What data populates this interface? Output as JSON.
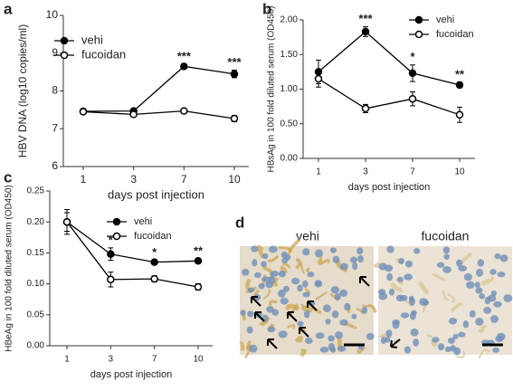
{
  "chart_data": [
    {
      "type": "line",
      "panel": "a",
      "ylabel": "HBV DNA (log10 copies/ml)",
      "xlabel": "days post injection",
      "categories": [
        "1",
        "3",
        "7",
        "10"
      ],
      "ylim": [
        6,
        10
      ],
      "yticks": [
        6,
        7,
        8,
        9,
        10
      ],
      "legend": "upper left",
      "series": [
        {
          "name": "vehi",
          "color": "#000000",
          "marker": "filled",
          "values": [
            7.46,
            7.47,
            8.65,
            8.45
          ],
          "errors": [
            0.04,
            0.04,
            0.06,
            0.1
          ]
        },
        {
          "name": "fucoidan",
          "color": "#000000",
          "marker": "open",
          "values": [
            7.45,
            7.38,
            7.47,
            7.27
          ],
          "errors": [
            0.04,
            0.04,
            0.04,
            0.08
          ]
        }
      ],
      "annotations": [
        {
          "x": "7",
          "text": "***"
        },
        {
          "x": "10",
          "text": "***"
        }
      ]
    },
    {
      "type": "line",
      "panel": "b",
      "ylabel": "HBsAg in 100 fold diluted serum (OD450)",
      "xlabel": "days post injection",
      "categories": [
        "1",
        "3",
        "7",
        "10"
      ],
      "ylim": [
        0,
        2
      ],
      "yticks": [
        {
          "value": 0,
          "label": "0.00"
        },
        {
          "value": 0.5,
          "label": "0.50"
        },
        {
          "value": 1,
          "label": "1.00"
        },
        {
          "value": 1.5,
          "label": "1.50"
        },
        {
          "value": 2,
          "label": "2.00"
        }
      ],
      "legend": "upper right",
      "series": [
        {
          "name": "vehi",
          "color": "#000000",
          "marker": "filled",
          "values": [
            1.25,
            1.83,
            1.23,
            1.06
          ],
          "errors": [
            0.17,
            0.07,
            0.12,
            0.04
          ]
        },
        {
          "name": "fucoidan",
          "color": "#000000",
          "marker": "open",
          "values": [
            1.15,
            0.72,
            0.86,
            0.63
          ],
          "errors": [
            0.12,
            0.06,
            0.1,
            0.11
          ]
        }
      ],
      "annotations": [
        {
          "x": "3",
          "text": "***"
        },
        {
          "x": "7",
          "text": "*"
        },
        {
          "x": "10",
          "text": "**"
        }
      ]
    },
    {
      "type": "line",
      "panel": "c",
      "ylabel": "HBeAg in 100 fold diluted serum (OD450)",
      "xlabel": "days post injection",
      "categories": [
        "1",
        "3",
        "7",
        "10"
      ],
      "ylim": [
        0,
        0.25
      ],
      "yticks": [
        {
          "value": 0,
          "label": "0.00"
        },
        {
          "value": 0.05,
          "label": "0.05"
        },
        {
          "value": 0.1,
          "label": "0.10"
        },
        {
          "value": 0.15,
          "label": "0.15"
        },
        {
          "value": 0.2,
          "label": "0.20"
        },
        {
          "value": 0.25,
          "label": "0.25"
        }
      ],
      "legend": "upper right",
      "series": [
        {
          "name": "vehi",
          "color": "#000000",
          "marker": "filled",
          "values": [
            0.2,
            0.148,
            0.135,
            0.137
          ],
          "errors": [
            0.02,
            0.01,
            0.003,
            0.003
          ]
        },
        {
          "name": "fucoidan",
          "color": "#000000",
          "marker": "open",
          "values": [
            0.2,
            0.107,
            0.108,
            0.095
          ],
          "errors": [
            0.015,
            0.012,
            0.005,
            0.005
          ]
        }
      ],
      "annotations": [
        {
          "x": "3",
          "text": "*"
        },
        {
          "x": "7",
          "text": "*"
        },
        {
          "x": "10",
          "text": "**"
        }
      ]
    }
  ],
  "panel_d": {
    "label": "d",
    "images": [
      {
        "title": "vehi"
      },
      {
        "title": "fucoidan"
      }
    ]
  }
}
